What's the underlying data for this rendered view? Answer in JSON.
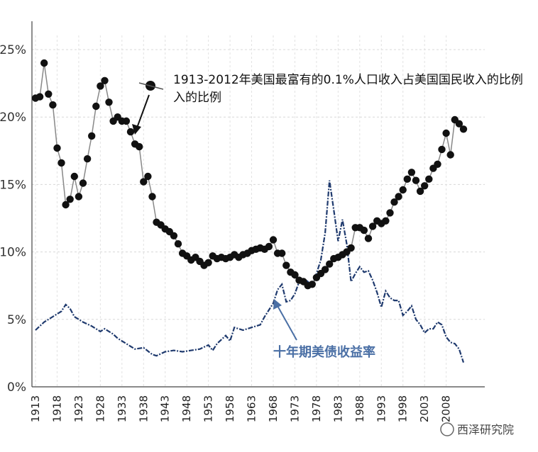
{
  "chart_data": {
    "type": "line",
    "title": "",
    "xlabel": "",
    "ylabel": "",
    "xlim": [
      1913,
      2012
    ],
    "ylim": [
      0,
      25
    ],
    "y_ticks": [
      "0%",
      "5%",
      "10%",
      "15%",
      "20%",
      "25%"
    ],
    "x_ticks": [
      "1913",
      "1918",
      "1923",
      "1928",
      "1933",
      "1938",
      "1943",
      "1948",
      "1953",
      "1958",
      "1963",
      "1968",
      "1973",
      "1978",
      "1983",
      "1988",
      "1993",
      "1998",
      "2003",
      "2008"
    ],
    "grid": true,
    "legend": "none",
    "colors": {
      "top": "#111111",
      "bond": "#1f3a6e",
      "annotation2": "#4a6fa5"
    },
    "annotations": [
      {
        "text": "1913-2012年美国最富有的0.1%人口收入占美国国民收入的比例",
        "lines": [
          "1913-2012年美国最富有的0.1%人口收入占美国国民收入的比例",
          "入的比例"
        ]
      },
      {
        "text": "十年期美债收益率"
      }
    ],
    "series": [
      {
        "name": "",
        "label_text": "1913-2012年美国最富有的0.1%人口收入占美国国民收入的比例",
        "x": [
          1913,
          1914,
          1915,
          1916,
          1917,
          1918,
          1919,
          1920,
          1921,
          1922,
          1923,
          1924,
          1925,
          1926,
          1927,
          1928,
          1929,
          1930,
          1931,
          1932,
          1933,
          1934,
          1935,
          1936,
          1937,
          1938,
          1939,
          1940,
          1941,
          1942,
          1943,
          1944,
          1945,
          1946,
          1947,
          1948,
          1949,
          1950,
          1951,
          1952,
          1953,
          1954,
          1955,
          1956,
          1957,
          1958,
          1959,
          1960,
          1961,
          1962,
          1963,
          1964,
          1965,
          1966,
          1967,
          1968,
          1969,
          1970,
          1971,
          1972,
          1973,
          1974,
          1975,
          1976,
          1977,
          1978,
          1979,
          1980,
          1981,
          1982,
          1983,
          1984,
          1985,
          1986,
          1987,
          1988,
          1989,
          1990,
          1991,
          1992,
          1993,
          1994,
          1995,
          1996,
          1997,
          1998,
          1999,
          2000,
          2001,
          2002,
          2003,
          2004,
          2005,
          2006,
          2007,
          2008,
          2009,
          2010,
          2011,
          2012
        ],
        "values": [
          21.4,
          21.5,
          24.0,
          21.7,
          20.9,
          17.7,
          16.6,
          13.5,
          13.9,
          15.6,
          14.1,
          15.1,
          16.9,
          18.6,
          20.8,
          22.3,
          22.7,
          21.1,
          19.7,
          20.0,
          19.7,
          19.7,
          18.9,
          18.0,
          17.8,
          15.2,
          15.6,
          14.1,
          12.2,
          12.0,
          11.7,
          11.5,
          11.2,
          10.6,
          9.9,
          9.7,
          9.4,
          9.6,
          9.3,
          9.0,
          9.2,
          9.7,
          9.5,
          9.6,
          9.5,
          9.6,
          9.8,
          9.6,
          9.8,
          9.9,
          10.1,
          10.2,
          10.3,
          10.2,
          10.4,
          10.9,
          9.9,
          9.9,
          9.0,
          8.5,
          8.3,
          7.9,
          7.8,
          7.5,
          7.6,
          8.1,
          8.4,
          8.7,
          9.1,
          9.5,
          9.6,
          9.8,
          10.0,
          10.3,
          11.8,
          11.8,
          11.6,
          11.0,
          11.9,
          12.3,
          12.1,
          12.3,
          12.9,
          13.7,
          14.1,
          14.6,
          15.4,
          15.9,
          15.3,
          14.5,
          14.9,
          15.4,
          16.2,
          16.5,
          17.6,
          18.8,
          17.2,
          19.8,
          19.5,
          19.1
        ]
      },
      {
        "name": "",
        "label_text": "十年期美债收益率",
        "x": [
          1913,
          1915,
          1917,
          1919,
          1920,
          1921,
          1922,
          1924,
          1926,
          1928,
          1929,
          1931,
          1932,
          1934,
          1936,
          1938,
          1940,
          1941,
          1943,
          1945,
          1947,
          1949,
          1951,
          1953,
          1954,
          1955,
          1957,
          1958,
          1959,
          1961,
          1963,
          1965,
          1966,
          1967,
          1968,
          1969,
          1970,
          1971,
          1972,
          1973,
          1974,
          1975,
          1976,
          1977,
          1978,
          1979,
          1980,
          1981,
          1982,
          1983,
          1984,
          1985,
          1986,
          1987,
          1988,
          1989,
          1990,
          1991,
          1992,
          1993,
          1994,
          1995,
          1996,
          1997,
          1998,
          1999,
          2000,
          2001,
          2002,
          2003,
          2004,
          2005,
          2006,
          2007,
          2008,
          2009,
          2010,
          2011,
          2012
        ],
        "values": [
          4.2,
          4.8,
          5.2,
          5.6,
          6.1,
          5.8,
          5.2,
          4.8,
          4.5,
          4.1,
          4.3,
          3.9,
          3.6,
          3.2,
          2.8,
          2.9,
          2.4,
          2.3,
          2.6,
          2.7,
          2.6,
          2.7,
          2.8,
          3.1,
          2.7,
          3.2,
          3.8,
          3.4,
          4.4,
          4.2,
          4.4,
          4.6,
          5.2,
          5.7,
          6.2,
          7.2,
          7.6,
          6.3,
          6.4,
          6.9,
          7.8,
          8.0,
          7.8,
          7.4,
          8.4,
          9.4,
          11.4,
          15.3,
          13.1,
          10.8,
          12.4,
          10.6,
          7.8,
          8.4,
          8.9,
          8.5,
          8.6,
          7.9,
          7.0,
          5.9,
          7.1,
          6.6,
          6.4,
          6.4,
          5.3,
          5.6,
          6.0,
          5.0,
          4.6,
          4.0,
          4.3,
          4.3,
          4.8,
          4.6,
          3.7,
          3.3,
          3.2,
          2.8,
          1.8
        ]
      }
    ]
  },
  "watermark": "西泽研究院"
}
